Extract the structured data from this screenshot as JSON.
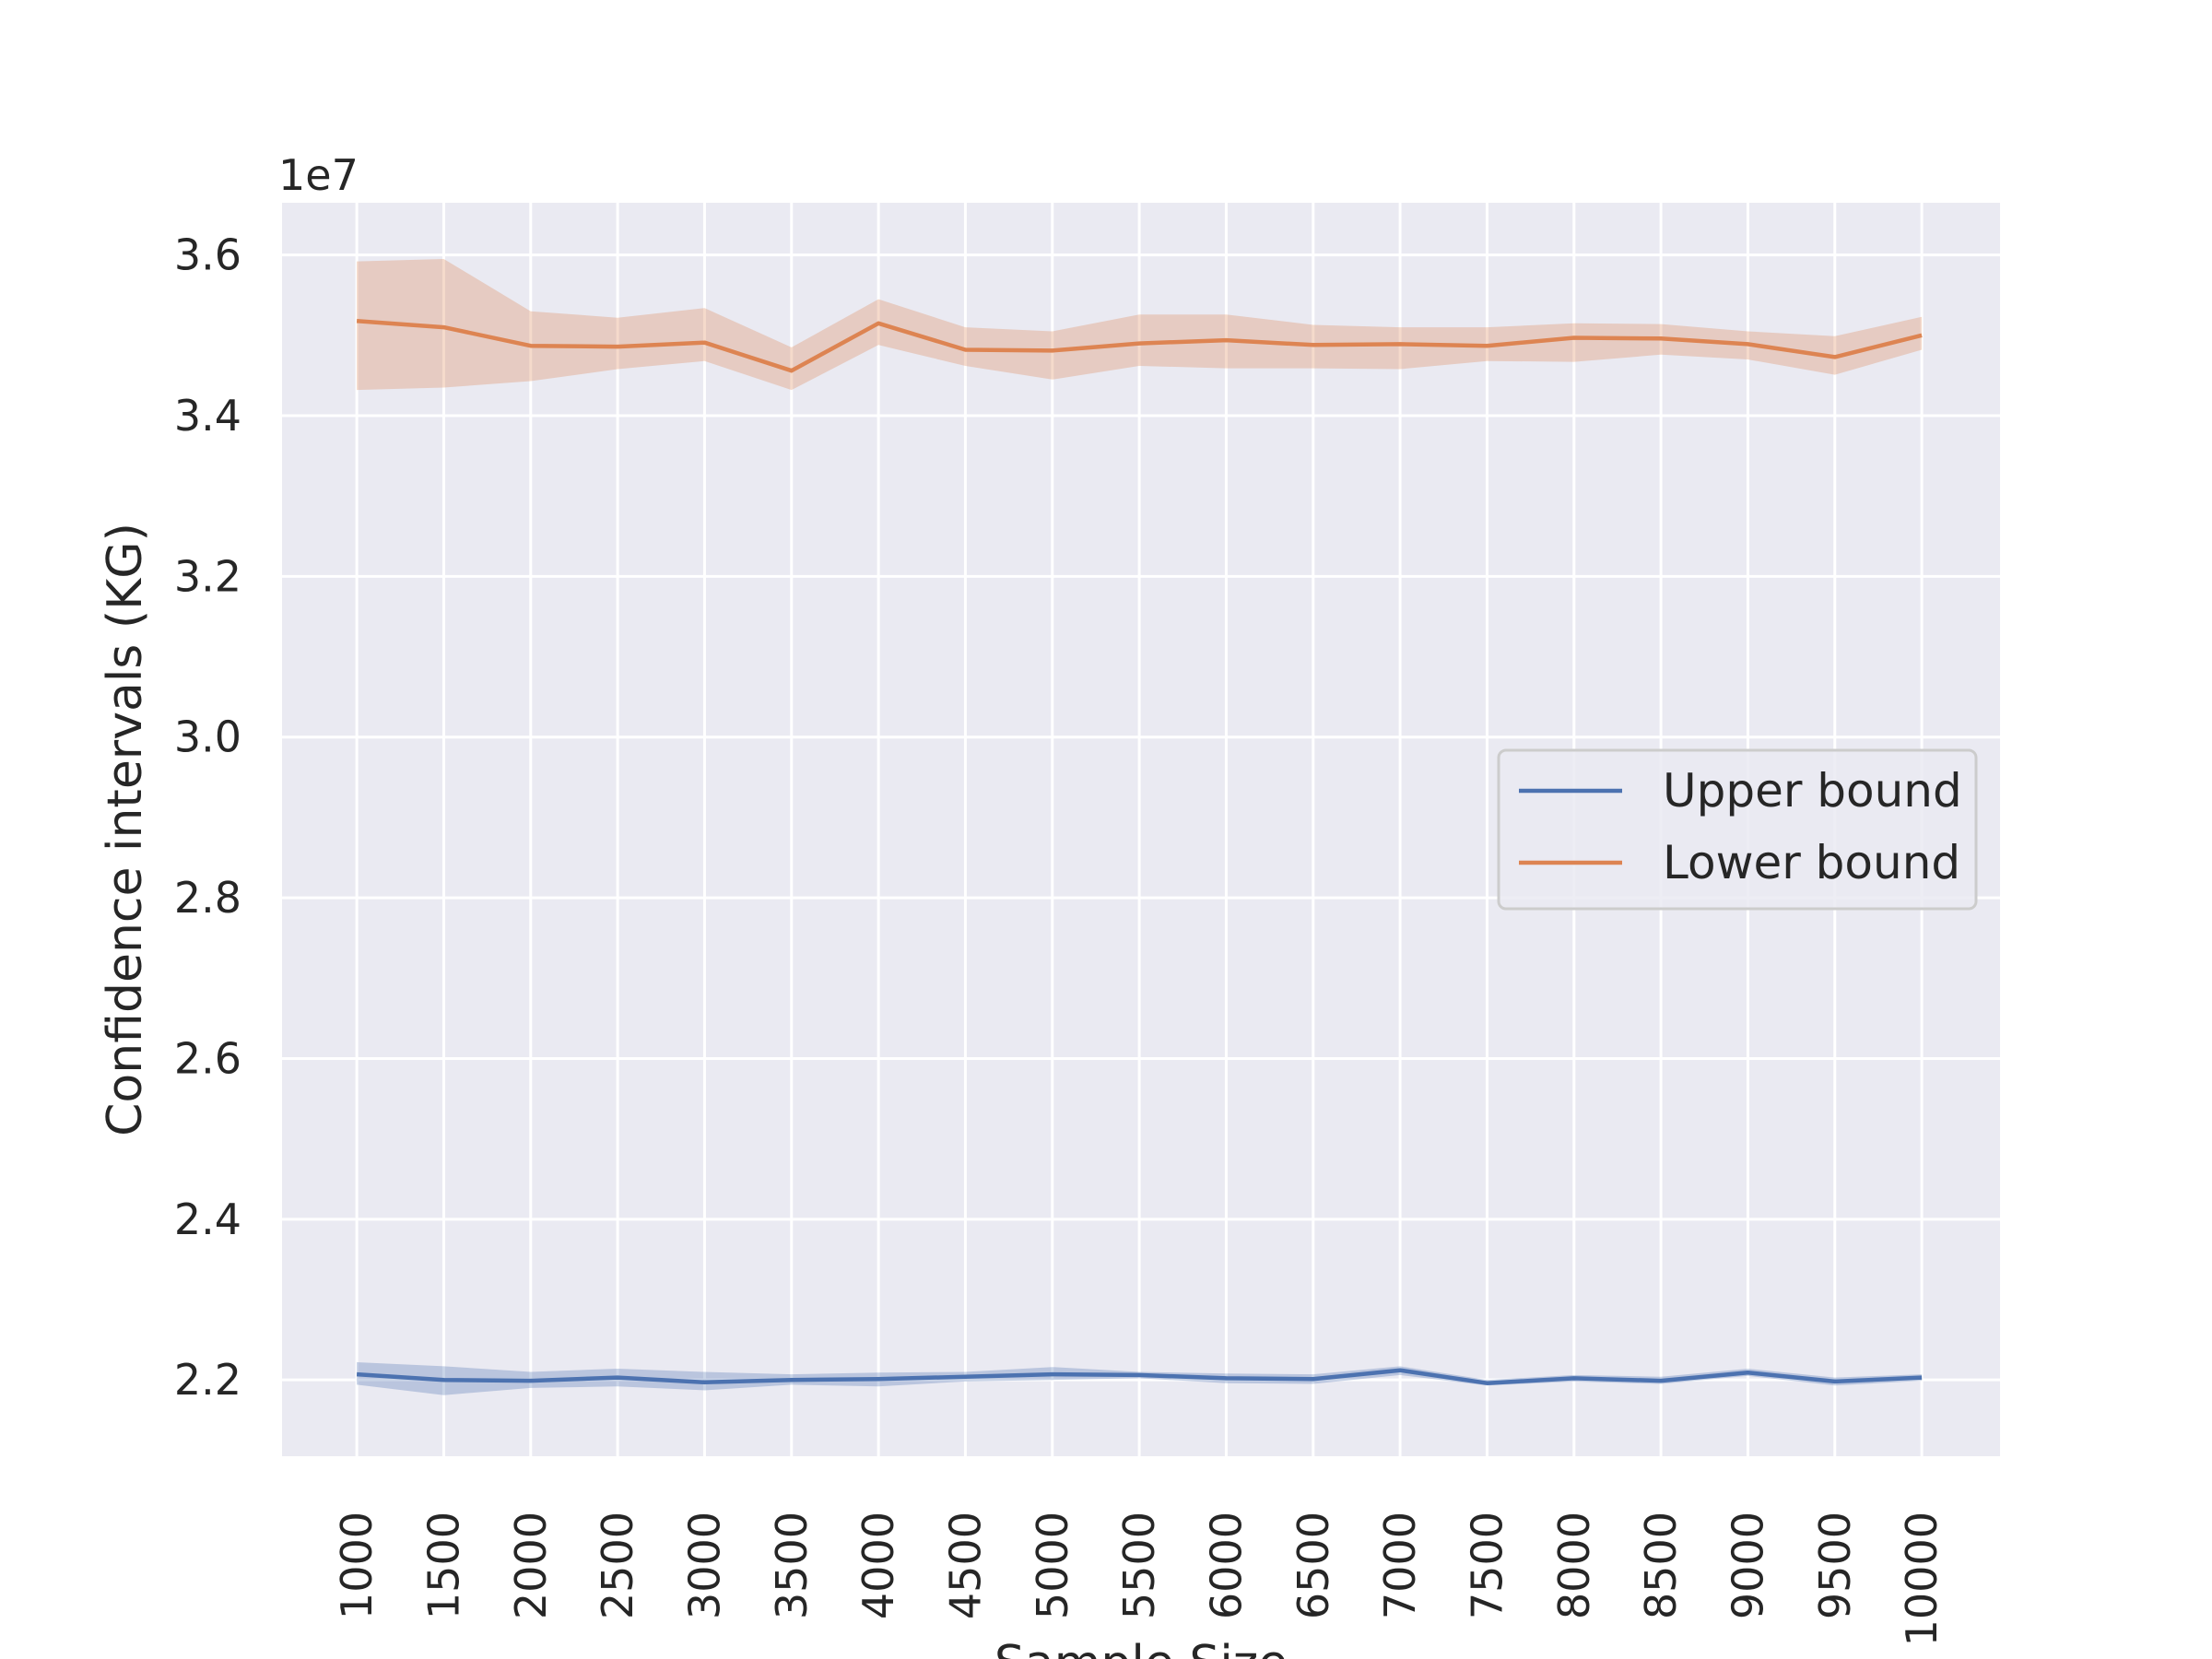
{
  "chart_data": {
    "type": "line",
    "xlabel": "Sample Size",
    "ylabel": "Confidence intervals (KG)",
    "y_offset_text": "1e7",
    "x": [
      1000,
      1500,
      2000,
      2500,
      3000,
      3500,
      4000,
      4500,
      5000,
      5500,
      6000,
      6500,
      7000,
      7500,
      8000,
      8500,
      9000,
      9500,
      10000
    ],
    "x_tick_labels": [
      "1000",
      "1500",
      "2000",
      "2500",
      "3000",
      "3500",
      "4000",
      "4500",
      "5000",
      "5500",
      "6000",
      "6500",
      "7000",
      "7500",
      "8000",
      "8500",
      "9000",
      "9500",
      "10000"
    ],
    "y_ticks": [
      2.2,
      2.4,
      2.6,
      2.8,
      3.0,
      3.2,
      3.4,
      3.6
    ],
    "y_tick_labels": [
      "2.2",
      "2.4",
      "2.6",
      "2.8",
      "3.0",
      "3.2",
      "3.4",
      "3.6"
    ],
    "ylim": [
      2.105,
      3.665
    ],
    "xlim": [
      570,
      10450
    ],
    "grid": true,
    "legend_placement": "center-right",
    "series": [
      {
        "name": "Upper bound",
        "color": "#4c72b0",
        "values": [
          2.207,
          2.2,
          2.199,
          2.203,
          2.197,
          2.2,
          2.201,
          2.204,
          2.207,
          2.206,
          2.202,
          2.201,
          2.212,
          2.196,
          2.202,
          2.199,
          2.209,
          2.198,
          2.203
        ],
        "ci_low": [
          2.194,
          2.181,
          2.19,
          2.192,
          2.187,
          2.194,
          2.192,
          2.198,
          2.2,
          2.202,
          2.196,
          2.195,
          2.206,
          2.193,
          2.198,
          2.195,
          2.205,
          2.193,
          2.199
        ],
        "ci_high": [
          2.222,
          2.217,
          2.21,
          2.214,
          2.21,
          2.207,
          2.209,
          2.21,
          2.216,
          2.21,
          2.208,
          2.207,
          2.217,
          2.2,
          2.206,
          2.204,
          2.214,
          2.203,
          2.207
        ]
      },
      {
        "name": "Lower bound",
        "color": "#dd8452",
        "values": [
          3.518,
          3.51,
          3.487,
          3.486,
          3.491,
          3.456,
          3.515,
          3.482,
          3.481,
          3.49,
          3.494,
          3.488,
          3.489,
          3.487,
          3.497,
          3.496,
          3.489,
          3.473,
          3.5
        ],
        "ci_low": [
          3.432,
          3.435,
          3.443,
          3.458,
          3.468,
          3.432,
          3.488,
          3.462,
          3.445,
          3.462,
          3.459,
          3.459,
          3.458,
          3.468,
          3.467,
          3.476,
          3.47,
          3.451,
          3.482
        ],
        "ci_high": [
          3.592,
          3.595,
          3.53,
          3.522,
          3.534,
          3.485,
          3.545,
          3.51,
          3.505,
          3.526,
          3.526,
          3.513,
          3.51,
          3.51,
          3.515,
          3.514,
          3.505,
          3.499,
          3.523
        ]
      }
    ]
  }
}
